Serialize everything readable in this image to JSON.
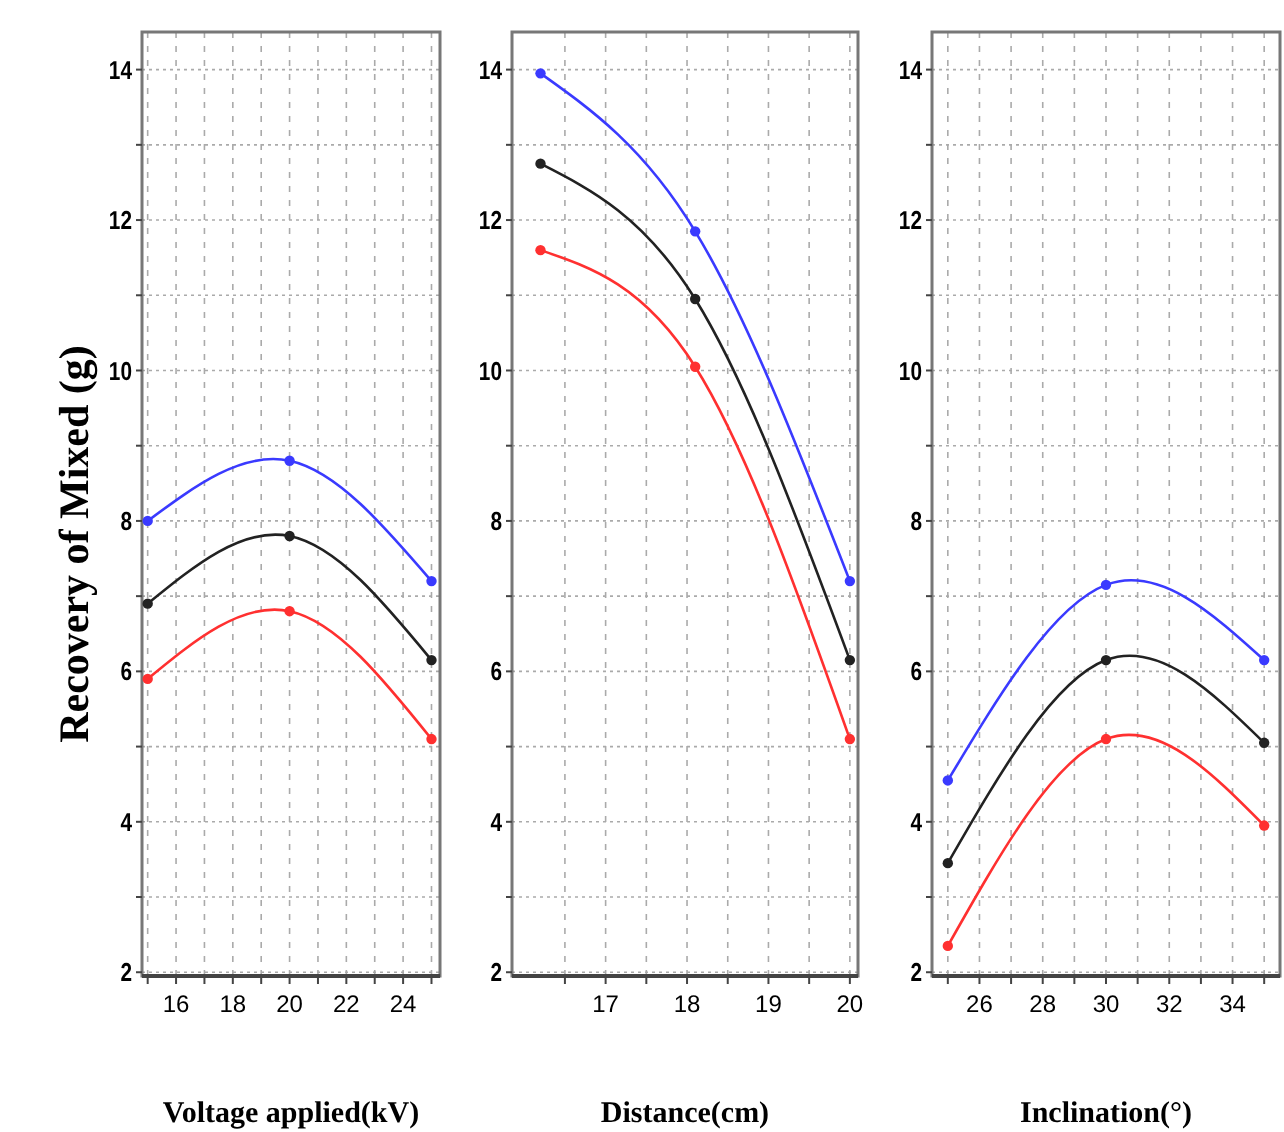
{
  "chart_data": [
    {
      "type": "line",
      "ylabel": "Recovery of  Mixed (g)",
      "xlabel": "Voltage applied(kV)",
      "x": [
        15,
        20,
        25
      ],
      "xlim": [
        14.8,
        25.3
      ],
      "xticks": [
        {
          "value": 15,
          "label": null
        },
        16,
        {
          "value": 17,
          "label": null
        },
        18,
        {
          "value": 19,
          "label": null
        },
        20,
        {
          "value": 21,
          "label": null
        },
        22,
        {
          "value": 23,
          "label": null
        },
        24,
        {
          "value": 25,
          "label": null
        }
      ],
      "ylim": [
        1.95,
        14.5
      ],
      "yticks": [
        2,
        {
          "value": 3,
          "label": null
        },
        4,
        {
          "value": 5,
          "label": null
        },
        6,
        {
          "value": 7,
          "label": null
        },
        8,
        {
          "value": 9,
          "label": null
        },
        10,
        {
          "value": 11,
          "label": null
        },
        12,
        {
          "value": 13,
          "label": null
        },
        14
      ],
      "grid": true,
      "marker": "circle",
      "line_style": "solid",
      "series": [
        {
          "color": "#3a3aff",
          "values": [
            8.0,
            8.8,
            7.2
          ]
        },
        {
          "color": "#222222",
          "values": [
            6.9,
            7.8,
            6.15
          ]
        },
        {
          "color": "#ff3030",
          "values": [
            5.9,
            6.8,
            5.1
          ]
        }
      ]
    },
    {
      "type": "line",
      "xlabel": "Distance(cm)",
      "x": [
        16.2,
        18.1,
        20
      ],
      "xlim": [
        15.85,
        20.1
      ],
      "xticks": [
        {
          "value": 16.5,
          "label": null
        },
        17,
        {
          "value": 17.5,
          "label": null
        },
        18,
        {
          "value": 18.5,
          "label": null
        },
        19,
        {
          "value": 19.5,
          "label": null
        },
        20
      ],
      "ylim": [
        1.95,
        14.5
      ],
      "yticks": [
        2,
        {
          "value": 3,
          "label": null
        },
        4,
        {
          "value": 5,
          "label": null
        },
        6,
        {
          "value": 7,
          "label": null
        },
        8,
        {
          "value": 9,
          "label": null
        },
        10,
        {
          "value": 11,
          "label": null
        },
        12,
        {
          "value": 13,
          "label": null
        },
        14
      ],
      "grid": true,
      "marker": "circle",
      "line_style": "solid",
      "series": [
        {
          "color": "#3a3aff",
          "values": [
            13.95,
            11.85,
            7.2
          ]
        },
        {
          "color": "#222222",
          "values": [
            12.75,
            10.95,
            6.15
          ]
        },
        {
          "color": "#ff3030",
          "values": [
            11.6,
            10.05,
            5.1
          ]
        }
      ]
    },
    {
      "type": "line",
      "xlabel": "Inclination(°)",
      "x": [
        25,
        30,
        35
      ],
      "xlim": [
        24.5,
        35.5
      ],
      "xticks": [
        {
          "value": 25,
          "label": null
        },
        26,
        {
          "value": 27,
          "label": null
        },
        28,
        {
          "value": 29,
          "label": null
        },
        30,
        {
          "value": 31,
          "label": null
        },
        32,
        {
          "value": 33,
          "label": null
        },
        34,
        {
          "value": 35,
          "label": null
        }
      ],
      "ylim": [
        1.95,
        14.5
      ],
      "yticks": [
        2,
        {
          "value": 3,
          "label": null
        },
        4,
        {
          "value": 5,
          "label": null
        },
        6,
        {
          "value": 7,
          "label": null
        },
        8,
        {
          "value": 9,
          "label": null
        },
        10,
        {
          "value": 11,
          "label": null
        },
        12,
        {
          "value": 13,
          "label": null
        },
        14
      ],
      "grid": true,
      "marker": "circle",
      "line_style": "solid",
      "series": [
        {
          "color": "#3a3aff",
          "values": [
            4.55,
            7.15,
            6.15
          ]
        },
        {
          "color": "#222222",
          "values": [
            3.45,
            6.15,
            5.05
          ]
        },
        {
          "color": "#ff3030",
          "values": [
            2.35,
            5.1,
            3.95
          ]
        }
      ]
    }
  ]
}
